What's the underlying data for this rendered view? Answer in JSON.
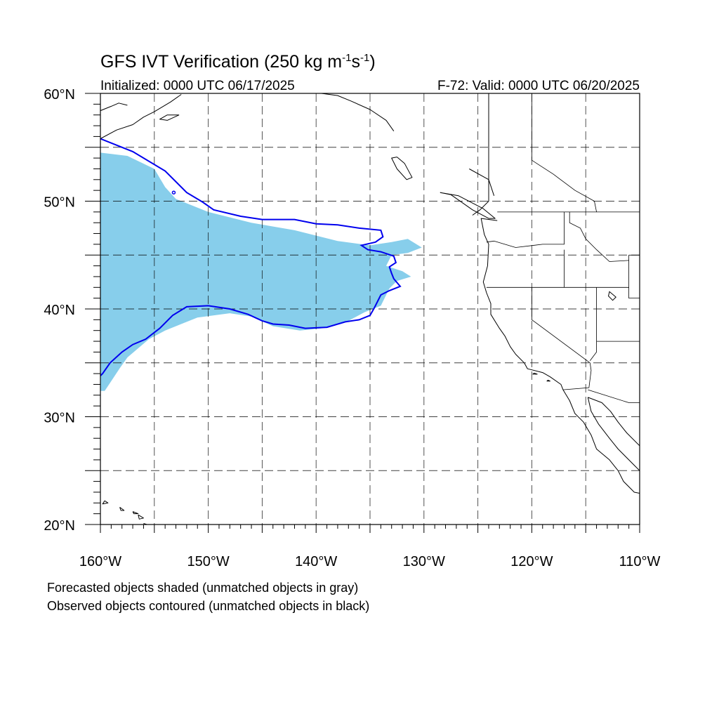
{
  "title": {
    "main": "GFS IVT Verification (250 kg m",
    "exp1": "-1",
    "mid": "s",
    "exp2": "-1",
    "close": ")"
  },
  "subtitle_left": "Initialized: 0000 UTC 06/17/2025",
  "subtitle_right": "F-72: Valid: 0000 UTC 06/20/2025",
  "lat_labels": [
    {
      "text": "60°N",
      "value": 60
    },
    {
      "text": "50°N",
      "value": 50
    },
    {
      "text": "40°N",
      "value": 40
    },
    {
      "text": "30°N",
      "value": 30
    },
    {
      "text": "20°N",
      "value": 20
    }
  ],
  "lon_labels": [
    {
      "text": "160°W",
      "value": -160
    },
    {
      "text": "150°W",
      "value": -150
    },
    {
      "text": "140°W",
      "value": -140
    },
    {
      "text": "130°W",
      "value": -130
    },
    {
      "text": "120°W",
      "value": -120
    },
    {
      "text": "110°W",
      "value": -110
    }
  ],
  "captions": {
    "forecast": "Forecasted objects shaded (unmatched objects in gray)",
    "observed": "Observed objects contoured (unmatched objects in black)"
  },
  "map": {
    "lon_range": [
      -160,
      -110
    ],
    "lat_range": [
      20,
      60
    ],
    "grid_spacing_deg": 5,
    "colors": {
      "forecast_fill": "#87ceeb",
      "observed_contour": "#0000ee",
      "coastline": "#000000",
      "grid": "#000000"
    },
    "forecast_object": [
      [
        -160,
        54.5
      ],
      [
        -157.5,
        54.2
      ],
      [
        -155,
        53.0
      ],
      [
        -154,
        51.3
      ],
      [
        -153,
        50.2
      ],
      [
        -150,
        49.0
      ],
      [
        -146,
        48.0
      ],
      [
        -142,
        47.3
      ],
      [
        -138,
        46.3
      ],
      [
        -135,
        45.9
      ],
      [
        -133,
        46.2
      ],
      [
        -131.5,
        46.5
      ],
      [
        -130.2,
        45.7
      ],
      [
        -131.5,
        45.2
      ],
      [
        -133,
        45.0
      ],
      [
        -133.5,
        44.0
      ],
      [
        -132,
        43.5
      ],
      [
        -131.2,
        43.0
      ],
      [
        -132.5,
        42.6
      ],
      [
        -133.2,
        41.9
      ],
      [
        -134,
        40.3
      ],
      [
        -135.5,
        39.7
      ],
      [
        -137,
        38.9
      ],
      [
        -139.5,
        38.2
      ],
      [
        -141.5,
        38.0
      ],
      [
        -144,
        38.4
      ],
      [
        -146,
        39.3
      ],
      [
        -148,
        39.6
      ],
      [
        -151,
        39.2
      ],
      [
        -154,
        38.0
      ],
      [
        -155.5,
        37.2
      ],
      [
        -157.5,
        35.5
      ],
      [
        -158.2,
        34.5
      ],
      [
        -159.2,
        33.0
      ],
      [
        -159.6,
        32.4
      ],
      [
        -160,
        32.4
      ]
    ],
    "observed_object": [
      [
        -160,
        55.8
      ],
      [
        -157,
        54.6
      ],
      [
        -154,
        52.8
      ],
      [
        -152,
        50.8
      ],
      [
        -150.5,
        49.9
      ],
      [
        -149.5,
        49.2
      ],
      [
        -147,
        48.6
      ],
      [
        -145,
        48.3
      ],
      [
        -142,
        48.3
      ],
      [
        -140,
        47.9
      ],
      [
        -138,
        47.8
      ],
      [
        -136,
        47.5
      ],
      [
        -134,
        47.3
      ],
      [
        -133.8,
        46.7
      ],
      [
        -134.5,
        46.2
      ],
      [
        -135.8,
        45.9
      ],
      [
        -135.2,
        45.5
      ],
      [
        -134,
        45.3
      ],
      [
        -132.8,
        44.9
      ],
      [
        -132.6,
        44.3
      ],
      [
        -133.2,
        43.9
      ],
      [
        -133,
        43.3
      ],
      [
        -132.8,
        42.8
      ],
      [
        -132.2,
        42.1
      ],
      [
        -133.2,
        41.7
      ],
      [
        -134,
        41.3
      ],
      [
        -134.6,
        40.1
      ],
      [
        -135,
        39.4
      ],
      [
        -136,
        39.0
      ],
      [
        -137.3,
        38.8
      ],
      [
        -139,
        38.3
      ],
      [
        -141,
        38.2
      ],
      [
        -142.5,
        38.5
      ],
      [
        -144,
        38.6
      ],
      [
        -145,
        38.9
      ],
      [
        -146.3,
        39.5
      ],
      [
        -148,
        40.0
      ],
      [
        -150,
        40.3
      ],
      [
        -152,
        40.2
      ],
      [
        -153.3,
        39.4
      ],
      [
        -154.5,
        38.2
      ],
      [
        -155.8,
        37.2
      ],
      [
        -157,
        36.7
      ],
      [
        -158,
        36.0
      ],
      [
        -159.1,
        35.0
      ],
      [
        -159.8,
        34.0
      ],
      [
        -160,
        33.8
      ]
    ],
    "observed_small_dot": [
      -153.2,
      50.8
    ],
    "coastlines": [
      [
        [
          -132.8,
          56.5
        ],
        [
          -133.5,
          57.5
        ],
        [
          -135,
          58.5
        ],
        [
          -136.8,
          59.3
        ],
        [
          -138,
          59.8
        ],
        [
          -139.5,
          60.0
        ]
      ],
      [
        [
          -160,
          58.4
        ],
        [
          -159,
          58.8
        ],
        [
          -158.3,
          59.1
        ],
        [
          -157.5,
          58.9
        ]
      ],
      [
        [
          -160,
          55.8
        ],
        [
          -158.5,
          56.6
        ],
        [
          -157,
          57.1
        ],
        [
          -156,
          57.8
        ],
        [
          -155,
          58.3
        ],
        [
          -153.5,
          59.2
        ],
        [
          -152.5,
          59.9
        ]
      ],
      [
        [
          -152.7,
          58.0
        ],
        [
          -153.8,
          57.5
        ],
        [
          -154.5,
          57.6
        ],
        [
          -153.8,
          58.0
        ],
        [
          -152.7,
          58.0
        ]
      ],
      [
        [
          -124.0,
          60.0
        ],
        [
          -124.0,
          50.0
        ],
        [
          -124.8,
          49.2
        ],
        [
          -125.5,
          48.7
        ]
      ],
      [
        [
          -132.5,
          54.1
        ],
        [
          -131.8,
          53.5
        ],
        [
          -131.1,
          52.2
        ],
        [
          -131.6,
          52.0
        ],
        [
          -132.5,
          53.0
        ],
        [
          -133.0,
          54.0
        ],
        [
          -132.5,
          54.1
        ]
      ],
      [
        [
          -128.5,
          50.8
        ],
        [
          -127.5,
          50.6
        ],
        [
          -125.5,
          49.2
        ],
        [
          -124.0,
          48.4
        ],
        [
          -123.4,
          48.4
        ],
        [
          -124.5,
          49.3
        ],
        [
          -126.8,
          50.5
        ],
        [
          -128.5,
          50.8
        ]
      ],
      [
        [
          -125.8,
          53.0
        ],
        [
          -124.0,
          52.0
        ],
        [
          -123.5,
          50.5
        ]
      ],
      [
        [
          -123.2,
          48.2
        ],
        [
          -124.7,
          48.4
        ],
        [
          -124.4,
          46.9
        ],
        [
          -124.0,
          46.0
        ],
        [
          -124.1,
          44.0
        ],
        [
          -124.5,
          42.5
        ],
        [
          -124.2,
          41.5
        ],
        [
          -123.8,
          40.5
        ],
        [
          -123.8,
          39.5
        ],
        [
          -123.0,
          38.2
        ],
        [
          -122.5,
          37.5
        ],
        [
          -122.0,
          36.5
        ],
        [
          -121.5,
          35.8
        ],
        [
          -120.7,
          35.0
        ],
        [
          -120.4,
          34.45
        ],
        [
          -119.0,
          34.1
        ],
        [
          -118.3,
          33.7
        ],
        [
          -117.3,
          33.0
        ],
        [
          -117.1,
          32.5
        ],
        [
          -116.5,
          31.5
        ],
        [
          -116.0,
          30.3
        ],
        [
          -115.2,
          29.5
        ],
        [
          -114.5,
          28.3
        ],
        [
          -114.0,
          27.0
        ],
        [
          -112.8,
          26.0
        ],
        [
          -112.0,
          25.0
        ],
        [
          -111.5,
          24.0
        ],
        [
          -110.5,
          23.0
        ],
        [
          -110,
          22.9
        ]
      ],
      [
        [
          -114.8,
          31.8
        ],
        [
          -114.5,
          30.5
        ],
        [
          -113.8,
          29.3
        ],
        [
          -112.8,
          28.0
        ],
        [
          -112.0,
          27.0
        ],
        [
          -111.0,
          26.0
        ],
        [
          -110.5,
          25.5
        ],
        [
          -110,
          25.0
        ]
      ],
      [
        [
          -114.8,
          31.8
        ],
        [
          -113.5,
          31.3
        ],
        [
          -112.7,
          30.5
        ],
        [
          -112.0,
          29.5
        ],
        [
          -111.2,
          28.5
        ],
        [
          -110,
          27.3
        ]
      ],
      [
        [
          -119.8,
          34.05
        ],
        [
          -119.5,
          33.95
        ],
        [
          -119.9,
          33.95
        ],
        [
          -119.8,
          34.05
        ]
      ],
      [
        [
          -118.5,
          33.4
        ],
        [
          -118.3,
          33.3
        ],
        [
          -118.6,
          33.3
        ],
        [
          -118.5,
          33.4
        ]
      ],
      [
        [
          -110.6,
          60.0
        ],
        [
          -110,
          60.3
        ]
      ],
      [
        [
          -159.6,
          22.2
        ],
        [
          -159.3,
          22.0
        ],
        [
          -159.8,
          21.9
        ],
        [
          -159.6,
          22.2
        ]
      ],
      [
        [
          -158.2,
          21.6
        ],
        [
          -157.8,
          21.3
        ],
        [
          -158.1,
          21.3
        ],
        [
          -158.2,
          21.6
        ]
      ],
      [
        [
          -157.0,
          21.2
        ],
        [
          -156.5,
          21.0
        ],
        [
          -156.9,
          21.0
        ],
        [
          -157.0,
          21.2
        ]
      ],
      [
        [
          -156.5,
          20.9
        ],
        [
          -156.0,
          20.6
        ],
        [
          -156.4,
          20.5
        ],
        [
          -156.5,
          20.9
        ]
      ],
      [
        [
          -156.0,
          20.1
        ],
        [
          -155.0,
          19.8
        ]
      ]
    ],
    "borders": [
      [
        [
          -123.2,
          49.0
        ],
        [
          -110,
          49.0
        ]
      ],
      [
        [
          -120,
          60
        ],
        [
          -120,
          53.8
        ],
        [
          -118,
          52.5
        ],
        [
          -116,
          51.0
        ],
        [
          -114.2,
          50.0
        ],
        [
          -114.0,
          49.0
        ]
      ],
      [
        [
          -124.2,
          46.2
        ],
        [
          -123.5,
          46.3
        ],
        [
          -121.5,
          45.7
        ],
        [
          -119.0,
          46.0
        ],
        [
          -117.0,
          46.0
        ],
        [
          -117.0,
          49.0
        ]
      ],
      [
        [
          -124.2,
          42.0
        ],
        [
          -111.0,
          42.0
        ]
      ],
      [
        [
          -117.0,
          42.0
        ],
        [
          -117.0,
          45.5
        ]
      ],
      [
        [
          -116.5,
          49.0
        ],
        [
          -116.5,
          48.0
        ],
        [
          -115.5,
          47.5
        ],
        [
          -115.0,
          46.5
        ],
        [
          -114.0,
          45.5
        ],
        [
          -112.8,
          44.4
        ],
        [
          -111.0,
          44.5
        ]
      ],
      [
        [
          -111.0,
          45.0
        ],
        [
          -110,
          45.0
        ]
      ],
      [
        [
          -111.0,
          45.0
        ],
        [
          -111.0,
          41.0
        ],
        [
          -110,
          41.0
        ]
      ],
      [
        [
          -120.0,
          42.0
        ],
        [
          -120.0,
          39.0
        ],
        [
          -114.6,
          35.0
        ],
        [
          -114.5,
          34.3
        ],
        [
          -114.7,
          32.7
        ],
        [
          -117.1,
          32.5
        ]
      ],
      [
        [
          -114.0,
          42.0
        ],
        [
          -114.0,
          37.0
        ],
        [
          -114.0,
          36.0
        ],
        [
          -114.6,
          35.2
        ]
      ],
      [
        [
          -114.0,
          37.0
        ],
        [
          -110,
          37.0
        ]
      ],
      [
        [
          -114.8,
          32.5
        ],
        [
          -111.0,
          31.3
        ],
        [
          -110,
          31.3
        ]
      ]
    ],
    "lakes": [
      [
        [
          -112.8,
          41.6
        ],
        [
          -112.2,
          41.1
        ],
        [
          -112.5,
          40.8
        ],
        [
          -112.9,
          41.2
        ],
        [
          -112.8,
          41.6
        ]
      ]
    ]
  }
}
